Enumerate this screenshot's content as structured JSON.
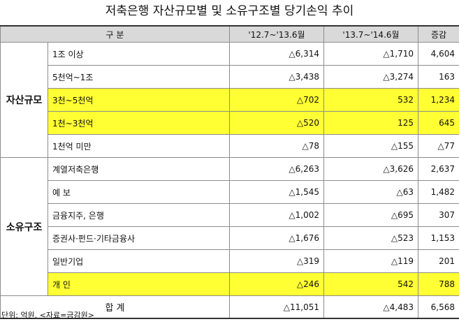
{
  "title": "저축은행 자산규모별 및 소유구조별 당기손익 추이",
  "headers": [
    "구 분",
    "'12.7~'13.6월",
    "'13.7~'14.6월",
    "증감"
  ],
  "groups": [
    {
      "name": "자산규모",
      "rows": [
        {
          "label": "1조 이상",
          "v1": "△6,314",
          "v2": "△1,710",
          "diff": "4,604",
          "highlight": false
        },
        {
          "label": "5천억~1조",
          "v1": "△3,438",
          "v2": "△3,274",
          "diff": "163",
          "highlight": false
        },
        {
          "label": "3천~5천억",
          "v1": "△702",
          "v2": "532",
          "diff": "1,234",
          "highlight": true
        },
        {
          "label": "1천~3천억",
          "v1": "△520",
          "v2": "125",
          "diff": "645",
          "highlight": true
        },
        {
          "label": "1천억 미만",
          "v1": "△78",
          "v2": "△155",
          "diff": "△77",
          "highlight": false
        }
      ]
    },
    {
      "name": "소유구조",
      "rows": [
        {
          "label": "계열저축은행",
          "v1": "△6,263",
          "v2": "△3,626",
          "diff": "2,637",
          "highlight": false
        },
        {
          "label": "예 보",
          "v1": "△1,545",
          "v2": "△63",
          "diff": "1,482",
          "highlight": false
        },
        {
          "label": "금융지주, 은행",
          "v1": "△1,002",
          "v2": "△695",
          "diff": "307",
          "highlight": false
        },
        {
          "label": "증권사·펀드·기타금융사",
          "v1": "△1,676",
          "v2": "△523",
          "diff": "1,153",
          "highlight": false
        },
        {
          "label": "일반기업",
          "v1": "△319",
          "v2": "△119",
          "diff": "201",
          "highlight": false
        },
        {
          "label": "개 인",
          "v1": "△246",
          "v2": "542",
          "diff": "788",
          "highlight": true
        }
      ]
    }
  ],
  "total": {
    "label": "합 계",
    "v1": "△11,051",
    "v2": "△4,483",
    "diff": "6,568"
  },
  "footer": "단위: 억원. <자료=금감원>",
  "colors": {
    "highlight": "#ffff33",
    "header_bg": "#d9d9d9"
  }
}
